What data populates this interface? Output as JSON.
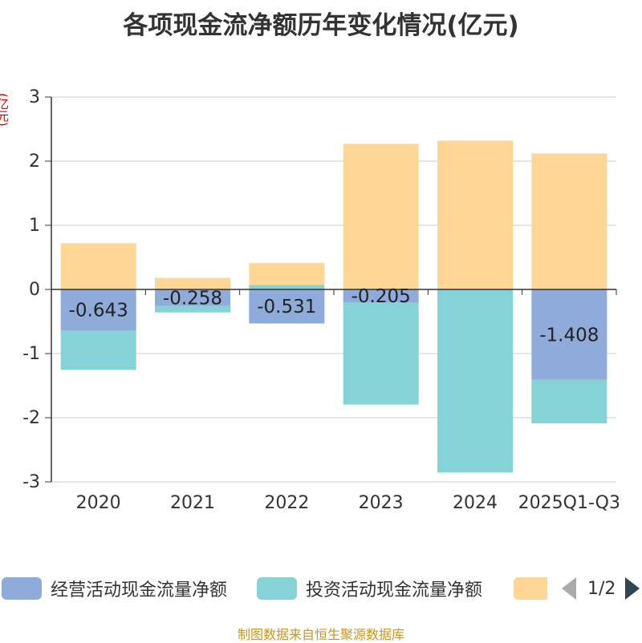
{
  "title": "各项现金流净额历年变化情况(亿元)",
  "unit_label": "(亿元)",
  "source": "制图数据来自恒生聚源数据库",
  "legend": {
    "items": [
      {
        "label": "经营活动现金流量净额",
        "color": "#8eabda"
      },
      {
        "label": "投资活动现金流量净额",
        "color": "#85d3d6"
      },
      {
        "label": "",
        "color": "#fed797"
      }
    ],
    "page": "1/2"
  },
  "chart_data": {
    "type": "bar",
    "stacked": true,
    "categories": [
      "2020",
      "2021",
      "2022",
      "2023",
      "2024",
      "2025Q1-Q3"
    ],
    "ylim": [
      -3,
      3
    ],
    "yticks": [
      3,
      2,
      1,
      0,
      -1,
      -2,
      -3
    ],
    "series": [
      {
        "name": "经营活动现金流量净额",
        "color": "#8eabda",
        "values": [
          -0.643,
          -0.258,
          -0.531,
          -0.205,
          -0.004,
          -1.408
        ],
        "labels": [
          "-0.643",
          "-0.258",
          "-0.531",
          "-0.205",
          "",
          "-1.408"
        ]
      },
      {
        "name": "投资活动现金流量净额",
        "color": "#85d3d6",
        "values": [
          -0.61,
          -0.1,
          0.07,
          -1.59,
          -2.85,
          -0.68
        ]
      },
      {
        "name": "",
        "color": "#fed797",
        "values": [
          0.72,
          0.18,
          0.34,
          2.27,
          2.32,
          2.12
        ]
      }
    ]
  }
}
